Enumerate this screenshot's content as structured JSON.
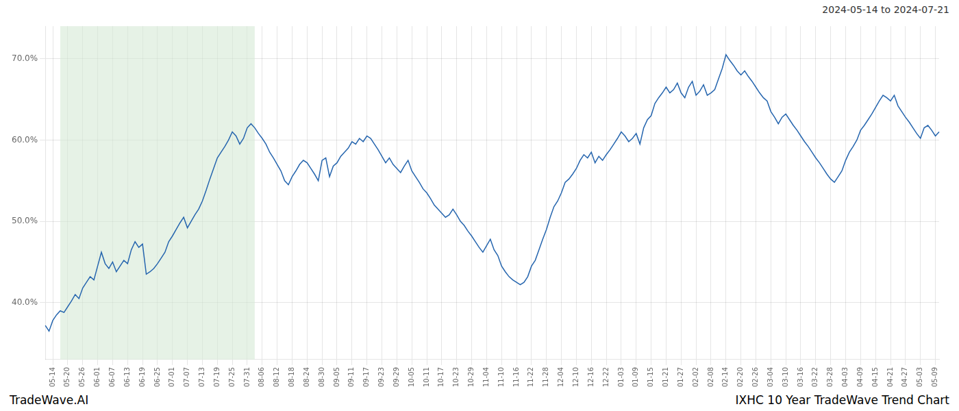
{
  "chart_data": {
    "type": "line",
    "title": "IXHC 10 Year TradeWave Trend Chart",
    "subtitle": "2024-05-14 to 2024-07-21",
    "annotations": [
      "TradeWave.AI"
    ],
    "color": "#2565ae",
    "grid": true,
    "ylim": [
      33.0,
      74.0
    ],
    "yticks": [
      {
        "value": 40.0,
        "label": "40.0%"
      },
      {
        "value": 50.0,
        "label": "50.0%"
      },
      {
        "value": 60.0,
        "label": "60.0%"
      },
      {
        "value": 70.0,
        "label": "70.0%"
      }
    ],
    "shaded_range": {
      "start": "05-20",
      "end": "07-31",
      "color": "#d6ead6"
    },
    "categories": [
      null,
      null,
      "05-14",
      null,
      null,
      null,
      "05-20",
      null,
      null,
      null,
      "05-26",
      null,
      null,
      null,
      "06-01",
      null,
      null,
      null,
      "06-07",
      null,
      null,
      null,
      "06-13",
      null,
      null,
      null,
      "06-19",
      null,
      null,
      null,
      "06-25",
      null,
      null,
      null,
      "07-01",
      null,
      null,
      null,
      "07-07",
      null,
      null,
      null,
      "07-13",
      null,
      null,
      null,
      "07-19",
      null,
      null,
      null,
      "07-25",
      null,
      null,
      null,
      "07-31",
      null,
      null,
      null,
      "08-06",
      null,
      null,
      null,
      "08-12",
      null,
      null,
      null,
      "08-18",
      null,
      null,
      null,
      "08-24",
      null,
      null,
      null,
      "08-30",
      null,
      null,
      null,
      "09-05",
      null,
      null,
      null,
      "09-11",
      null,
      null,
      null,
      "09-17",
      null,
      null,
      null,
      "09-23",
      null,
      null,
      null,
      "09-29",
      null,
      null,
      null,
      "10-05",
      null,
      null,
      null,
      "10-11",
      null,
      null,
      null,
      "10-17",
      null,
      null,
      null,
      "10-23",
      null,
      null,
      null,
      "10-29",
      null,
      null,
      null,
      "11-04",
      null,
      null,
      null,
      "11-10",
      null,
      null,
      null,
      "11-16",
      null,
      null,
      null,
      "11-22",
      null,
      null,
      null,
      "11-28",
      null,
      null,
      null,
      "12-04",
      null,
      null,
      null,
      "12-10",
      null,
      null,
      null,
      "12-16",
      null,
      null,
      null,
      "12-22",
      null,
      null,
      null,
      "01-03",
      null,
      null,
      null,
      "01-09",
      null,
      null,
      null,
      "01-15",
      null,
      null,
      null,
      "01-21",
      null,
      null,
      null,
      "01-27",
      null,
      null,
      null,
      "02-02",
      null,
      null,
      null,
      "02-08",
      null,
      null,
      null,
      "02-14",
      null,
      null,
      null,
      "02-20",
      null,
      null,
      null,
      "02-26",
      null,
      null,
      null,
      "03-04",
      null,
      null,
      null,
      "03-10",
      null,
      null,
      null,
      "03-16",
      null,
      null,
      null,
      "03-22",
      null,
      null,
      null,
      "03-28",
      null,
      null,
      null,
      "04-03",
      null,
      null,
      null,
      "04-09",
      null,
      null,
      null,
      "04-15",
      null,
      null,
      null,
      "04-21",
      null,
      null,
      null,
      "04-27",
      null,
      null,
      null,
      "05-03",
      null,
      null,
      null,
      "05-09",
      null
    ],
    "values": [
      37.2,
      36.5,
      37.8,
      38.5,
      39.0,
      38.8,
      39.5,
      40.2,
      41.0,
      40.5,
      41.8,
      42.5,
      43.2,
      42.8,
      44.5,
      46.2,
      44.8,
      44.2,
      45.0,
      43.8,
      44.5,
      45.2,
      44.8,
      46.5,
      47.5,
      46.8,
      47.2,
      43.5,
      43.8,
      44.2,
      44.8,
      45.5,
      46.2,
      47.5,
      48.2,
      49.0,
      49.8,
      50.5,
      49.2,
      50.0,
      50.8,
      51.5,
      52.5,
      53.8,
      55.2,
      56.5,
      57.8,
      58.5,
      59.2,
      60.0,
      61.0,
      60.5,
      59.5,
      60.2,
      61.5,
      62.0,
      61.5,
      60.8,
      60.2,
      59.5,
      58.5,
      57.8,
      57.0,
      56.2,
      55.0,
      54.5,
      55.5,
      56.2,
      57.0,
      57.5,
      57.2,
      56.5,
      55.8,
      55.0,
      57.5,
      57.8,
      55.5,
      56.8,
      57.2,
      58.0,
      58.5,
      59.0,
      59.8,
      59.5,
      60.2,
      59.8,
      60.5,
      60.2,
      59.5,
      58.8,
      58.0,
      57.2,
      57.8,
      57.0,
      56.5,
      56.0,
      56.8,
      57.5,
      56.2,
      55.5,
      54.8,
      54.0,
      53.5,
      52.8,
      52.0,
      51.5,
      51.0,
      50.5,
      50.8,
      51.5,
      50.8,
      50.0,
      49.5,
      48.8,
      48.2,
      47.5,
      46.8,
      46.2,
      47.0,
      47.8,
      46.5,
      45.8,
      44.5,
      43.8,
      43.2,
      42.8,
      42.5,
      42.2,
      42.5,
      43.2,
      44.5,
      45.2,
      46.5,
      47.8,
      49.0,
      50.5,
      51.8,
      52.5,
      53.5,
      54.8,
      55.2,
      55.8,
      56.5,
      57.5,
      58.2,
      57.8,
      58.5,
      57.2,
      58.0,
      57.5,
      58.2,
      58.8,
      59.5,
      60.2,
      61.0,
      60.5,
      59.8,
      60.2,
      60.8,
      59.5,
      61.5,
      62.5,
      63.0,
      64.5,
      65.2,
      65.8,
      66.5,
      65.8,
      66.2,
      67.0,
      65.8,
      65.2,
      66.5,
      67.2,
      65.5,
      66.0,
      66.8,
      65.5,
      65.8,
      66.2,
      67.5,
      68.8,
      70.5,
      69.8,
      69.2,
      68.5,
      68.0,
      68.5,
      67.8,
      67.2,
      66.5,
      65.8,
      65.2,
      64.8,
      63.5,
      62.8,
      62.0,
      62.8,
      63.2,
      62.5,
      61.8,
      61.2,
      60.5,
      59.8,
      59.2,
      58.5,
      57.8,
      57.2,
      56.5,
      55.8,
      55.2,
      54.8,
      55.5,
      56.2,
      57.5,
      58.5,
      59.2,
      60.0,
      61.2,
      61.8,
      62.5,
      63.2,
      64.0,
      64.8,
      65.5,
      65.2,
      64.8,
      65.5,
      64.2,
      63.5,
      62.8,
      62.2,
      61.5,
      60.8,
      60.2,
      61.5,
      61.8,
      61.2,
      60.5,
      61.0
    ]
  }
}
